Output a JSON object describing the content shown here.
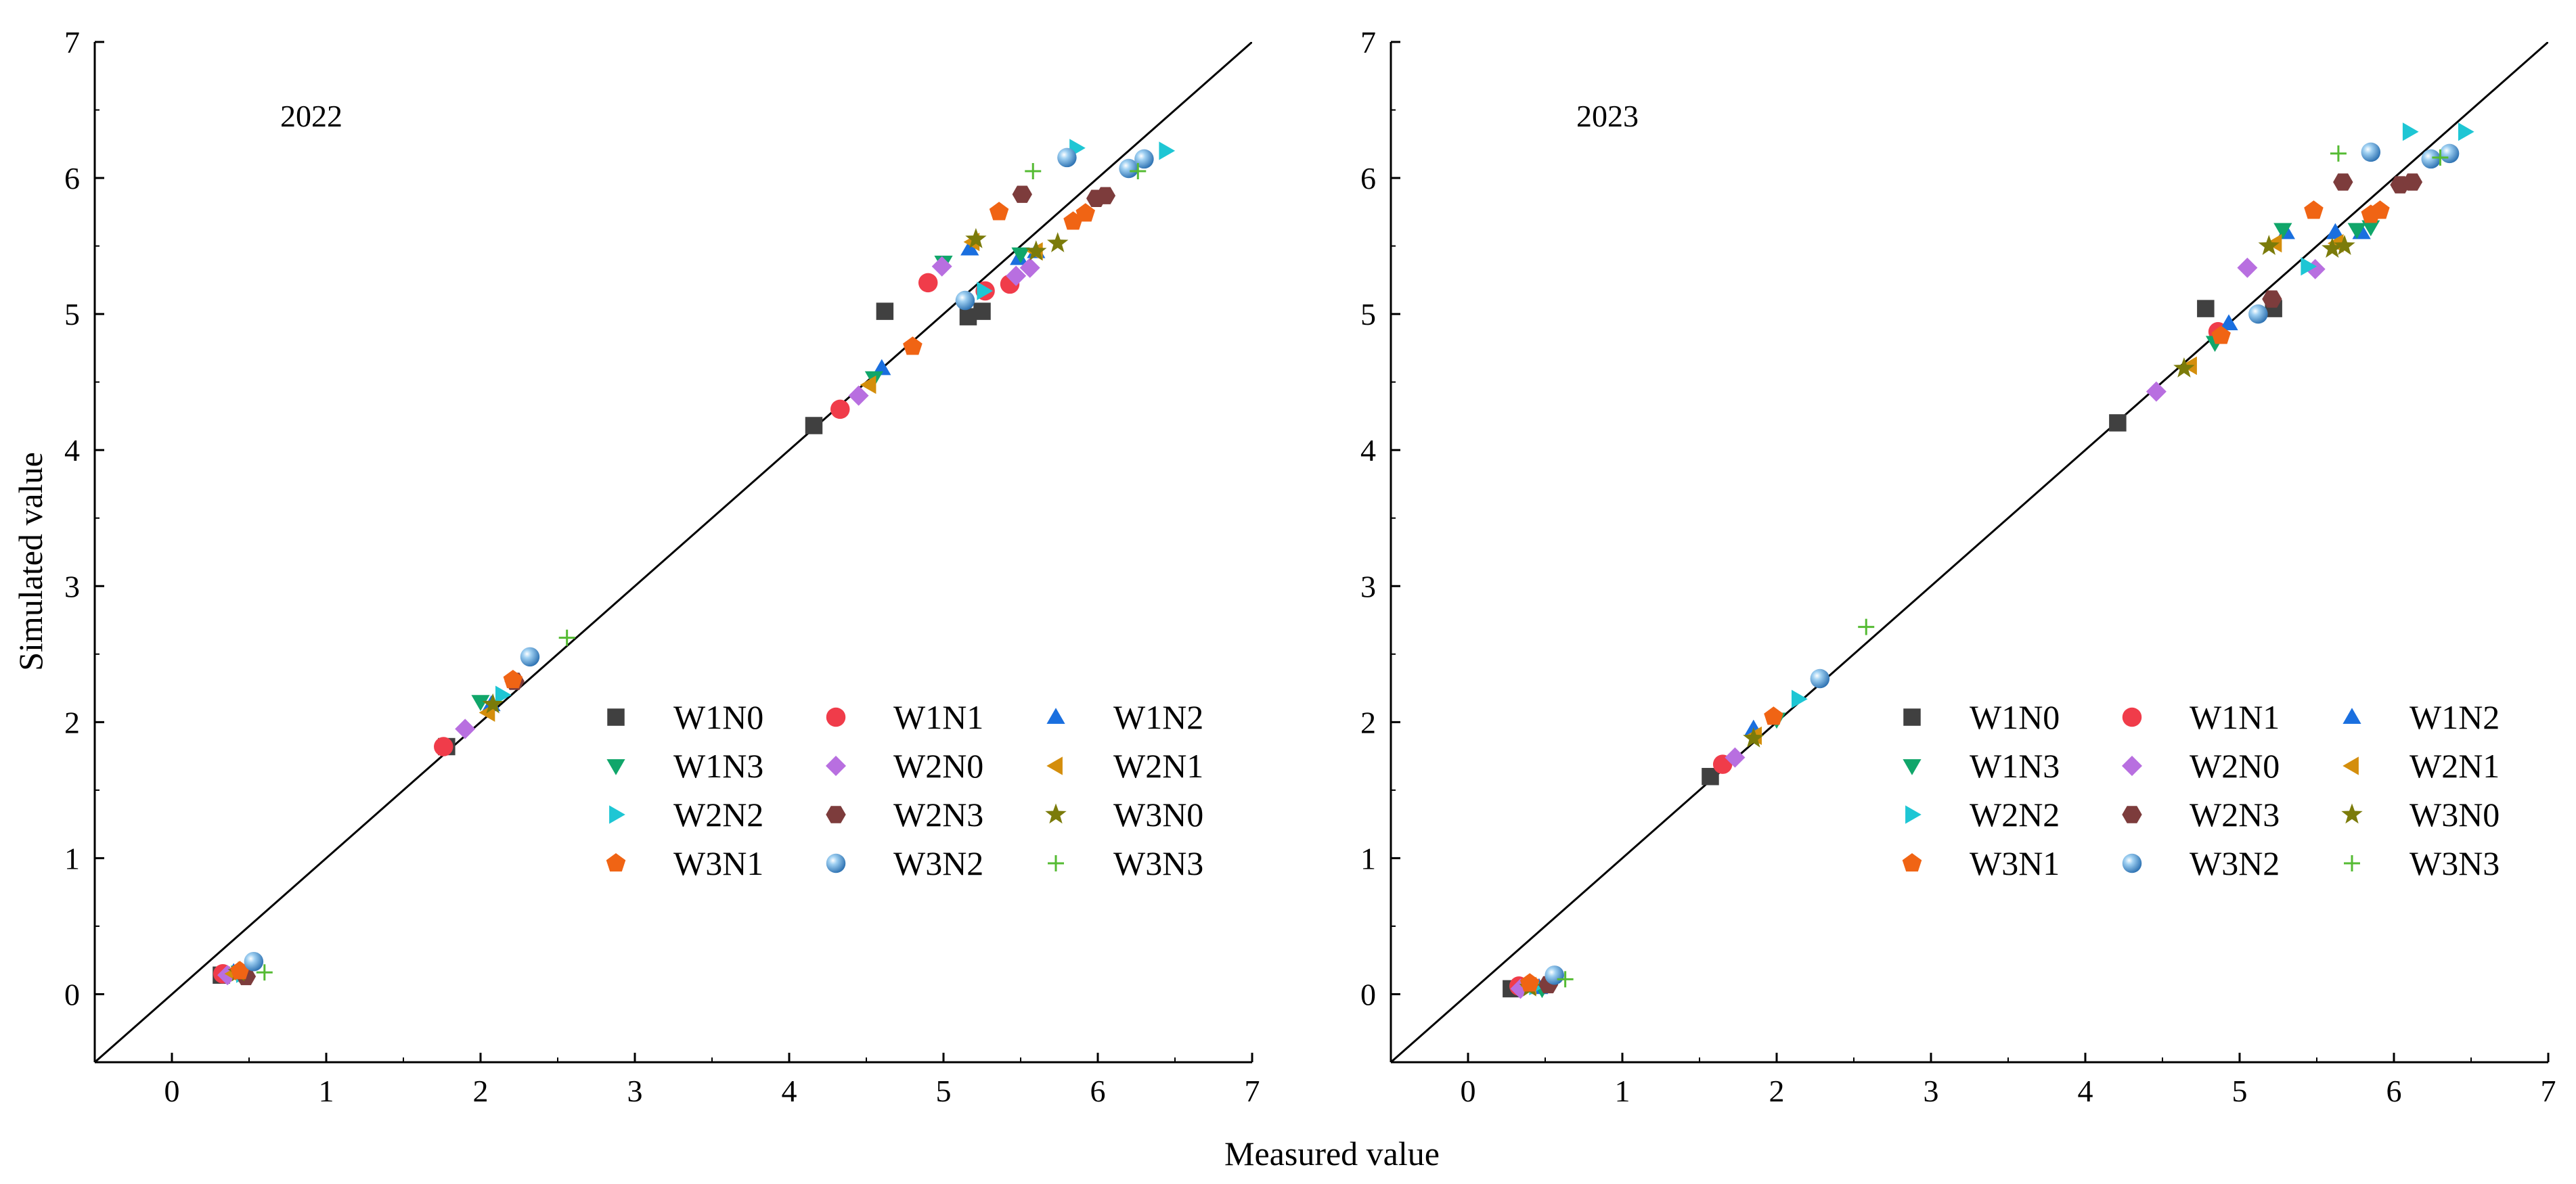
{
  "shared": {
    "xlabel": "Measured value",
    "ylabel": "Simulated value"
  },
  "chart_data": [
    {
      "type": "scatter",
      "title": "2022",
      "xlabel": "Measured value",
      "ylabel": "Simulated value",
      "xlim": [
        -0.5,
        7
      ],
      "ylim": [
        -0.5,
        7
      ],
      "xticks": [
        0,
        1,
        2,
        3,
        4,
        5,
        6,
        7
      ],
      "yticks": [
        0,
        1,
        2,
        3,
        4,
        5,
        6,
        7
      ],
      "reference_line": "1:1",
      "legend_position": "bottom-right",
      "series": [
        {
          "name": "W1N0",
          "marker": "square",
          "color": "#404040",
          "points": [
            [
              0.32,
              0.14
            ],
            [
              1.78,
              1.82
            ],
            [
              4.16,
              4.18
            ],
            [
              4.62,
              5.02
            ],
            [
              5.16,
              4.98
            ],
            [
              5.25,
              5.02
            ]
          ]
        },
        {
          "name": "W1N1",
          "marker": "circle",
          "color": "#f03c4a",
          "points": [
            [
              0.33,
              0.15
            ],
            [
              1.76,
              1.82
            ],
            [
              4.33,
              4.3
            ],
            [
              4.9,
              5.23
            ],
            [
              5.27,
              5.17
            ],
            [
              5.43,
              5.22
            ]
          ]
        },
        {
          "name": "W1N2",
          "marker": "triangle-up",
          "color": "#1a6fdf",
          "points": [
            [
              0.4,
              0.16
            ],
            [
              2.07,
              2.13
            ],
            [
              4.6,
              4.6
            ],
            [
              5.17,
              5.48
            ],
            [
              5.49,
              5.41
            ],
            [
              5.6,
              5.46
            ]
          ]
        },
        {
          "name": "W1N3",
          "marker": "triangle-down",
          "color": "#10a66a",
          "points": [
            [
              0.44,
              0.16
            ],
            [
              2.0,
              2.15
            ],
            [
              4.55,
              4.53
            ],
            [
              5.0,
              5.38
            ],
            [
              5.5,
              5.44
            ]
          ]
        },
        {
          "name": "W2N0",
          "marker": "diamond",
          "color": "#b86fe0",
          "points": [
            [
              0.36,
              0.14
            ],
            [
              1.9,
              1.95
            ],
            [
              4.45,
              4.4
            ],
            [
              4.99,
              5.35
            ],
            [
              5.47,
              5.28
            ],
            [
              5.56,
              5.34
            ]
          ]
        },
        {
          "name": "W2N1",
          "marker": "triangle-left",
          "color": "#d48e0c",
          "points": [
            [
              0.4,
              0.15
            ],
            [
              2.05,
              2.07
            ],
            [
              4.52,
              4.48
            ],
            [
              5.19,
              5.53
            ],
            [
              5.6,
              5.46
            ]
          ]
        },
        {
          "name": "W2N2",
          "marker": "triangle-right",
          "color": "#1ec6d4",
          "points": [
            [
              0.46,
              0.15
            ],
            [
              2.14,
              2.2
            ],
            [
              5.26,
              5.17
            ],
            [
              5.86,
              6.22
            ],
            [
              6.44,
              6.2
            ]
          ]
        },
        {
          "name": "W2N3",
          "marker": "hexagon",
          "color": "#7d3c3c",
          "points": [
            [
              0.48,
              0.13
            ],
            [
              2.22,
              2.3
            ],
            [
              5.51,
              5.88
            ],
            [
              5.99,
              5.85
            ],
            [
              6.05,
              5.87
            ]
          ]
        },
        {
          "name": "W3N0",
          "marker": "star",
          "color": "#7b7b0a",
          "points": [
            [
              0.43,
              0.16
            ],
            [
              2.08,
              2.13
            ],
            [
              5.21,
              5.55
            ],
            [
              5.6,
              5.46
            ],
            [
              5.74,
              5.52
            ]
          ]
        },
        {
          "name": "W3N1",
          "marker": "pentagon",
          "color": "#f06414",
          "points": [
            [
              0.44,
              0.17
            ],
            [
              2.21,
              2.31
            ],
            [
              4.8,
              4.76
            ],
            [
              5.36,
              5.75
            ],
            [
              5.84,
              5.68
            ],
            [
              5.92,
              5.74
            ]
          ]
        },
        {
          "name": "W3N2",
          "marker": "sphere",
          "color": "#3a8fd0",
          "points": [
            [
              0.53,
              0.24
            ],
            [
              2.32,
              2.48
            ],
            [
              5.14,
              5.1
            ],
            [
              5.8,
              6.15
            ],
            [
              6.2,
              6.07
            ],
            [
              6.3,
              6.14
            ]
          ]
        },
        {
          "name": "W3N3",
          "marker": "plus",
          "color": "#55bb33",
          "points": [
            [
              0.6,
              0.16
            ],
            [
              2.56,
              2.62
            ],
            [
              5.58,
              6.05
            ],
            [
              6.26,
              6.05
            ]
          ]
        }
      ]
    },
    {
      "type": "scatter",
      "title": "2023",
      "xlabel": "Measured value",
      "ylabel": "Simulated value",
      "xlim": [
        -0.5,
        7
      ],
      "ylim": [
        -0.5,
        7
      ],
      "xticks": [
        0,
        1,
        2,
        3,
        4,
        5,
        6,
        7
      ],
      "yticks": [
        0,
        1,
        2,
        3,
        4,
        5,
        6,
        7
      ],
      "reference_line": "1:1",
      "legend_position": "bottom-right",
      "series": [
        {
          "name": "W1N0",
          "marker": "square",
          "color": "#404040",
          "points": [
            [
              0.28,
              0.04
            ],
            [
              1.57,
              1.6
            ],
            [
              4.21,
              4.2
            ],
            [
              4.78,
              5.04
            ],
            [
              5.22,
              5.04
            ]
          ]
        },
        {
          "name": "W1N1",
          "marker": "circle",
          "color": "#f03c4a",
          "points": [
            [
              0.33,
              0.06
            ],
            [
              1.65,
              1.69
            ],
            [
              4.86,
              4.87
            ]
          ]
        },
        {
          "name": "W1N2",
          "marker": "triangle-up",
          "color": "#1a6fdf",
          "points": [
            [
              0.46,
              0.05
            ],
            [
              1.85,
              1.95
            ],
            [
              4.93,
              4.93
            ],
            [
              5.3,
              5.6
            ],
            [
              5.62,
              5.6
            ],
            [
              5.79,
              5.6
            ]
          ]
        },
        {
          "name": "W1N3",
          "marker": "triangle-down",
          "color": "#10a66a",
          "points": [
            [
              0.48,
              0.04
            ],
            [
              2.0,
              2.02
            ],
            [
              4.84,
              4.79
            ],
            [
              5.28,
              5.62
            ],
            [
              5.76,
              5.62
            ],
            [
              5.85,
              5.64
            ]
          ]
        },
        {
          "name": "W2N0",
          "marker": "diamond",
          "color": "#b86fe0",
          "points": [
            [
              0.34,
              0.04
            ],
            [
              1.73,
              1.74
            ],
            [
              4.46,
              4.43
            ],
            [
              5.05,
              5.34
            ],
            [
              5.49,
              5.33
            ]
          ]
        },
        {
          "name": "W2N1",
          "marker": "triangle-left",
          "color": "#d48e0c",
          "points": [
            [
              0.4,
              0.06
            ],
            [
              1.86,
              1.9
            ],
            [
              4.68,
              4.62
            ],
            [
              5.23,
              5.52
            ],
            [
              5.63,
              5.52
            ]
          ]
        },
        {
          "name": "W2N2",
          "marker": "triangle-right",
          "color": "#1ec6d4",
          "points": [
            [
              0.44,
              0.06
            ],
            [
              2.14,
              2.17
            ],
            [
              5.44,
              5.35
            ],
            [
              6.1,
              6.34
            ],
            [
              6.46,
              6.34
            ]
          ]
        },
        {
          "name": "W2N3",
          "marker": "hexagon",
          "color": "#7d3c3c",
          "points": [
            [
              0.52,
              0.07
            ],
            [
              5.21,
              5.11
            ],
            [
              5.67,
              5.97
            ],
            [
              6.04,
              5.95
            ],
            [
              6.12,
              5.97
            ]
          ]
        },
        {
          "name": "W3N0",
          "marker": "star",
          "color": "#7b7b0a",
          "points": [
            [
              0.4,
              0.05
            ],
            [
              1.85,
              1.88
            ],
            [
              4.64,
              4.6
            ],
            [
              5.19,
              5.5
            ],
            [
              5.6,
              5.48
            ],
            [
              5.68,
              5.5
            ]
          ]
        },
        {
          "name": "W3N1",
          "marker": "pentagon",
          "color": "#f06414",
          "points": [
            [
              0.4,
              0.08
            ],
            [
              1.98,
              2.04
            ],
            [
              4.88,
              4.84
            ],
            [
              5.48,
              5.76
            ],
            [
              5.85,
              5.73
            ],
            [
              5.91,
              5.76
            ]
          ]
        },
        {
          "name": "W3N2",
          "marker": "sphere",
          "color": "#3a8fd0",
          "points": [
            [
              0.56,
              0.14
            ],
            [
              2.28,
              2.32
            ],
            [
              5.12,
              5.0
            ],
            [
              5.85,
              6.19
            ],
            [
              6.24,
              6.14
            ],
            [
              6.36,
              6.18
            ]
          ]
        },
        {
          "name": "W3N3",
          "marker": "plus",
          "color": "#55bb33",
          "points": [
            [
              0.63,
              0.11
            ],
            [
              2.58,
              2.7
            ],
            [
              5.64,
              6.18
            ],
            [
              6.3,
              6.15
            ]
          ]
        }
      ]
    }
  ]
}
